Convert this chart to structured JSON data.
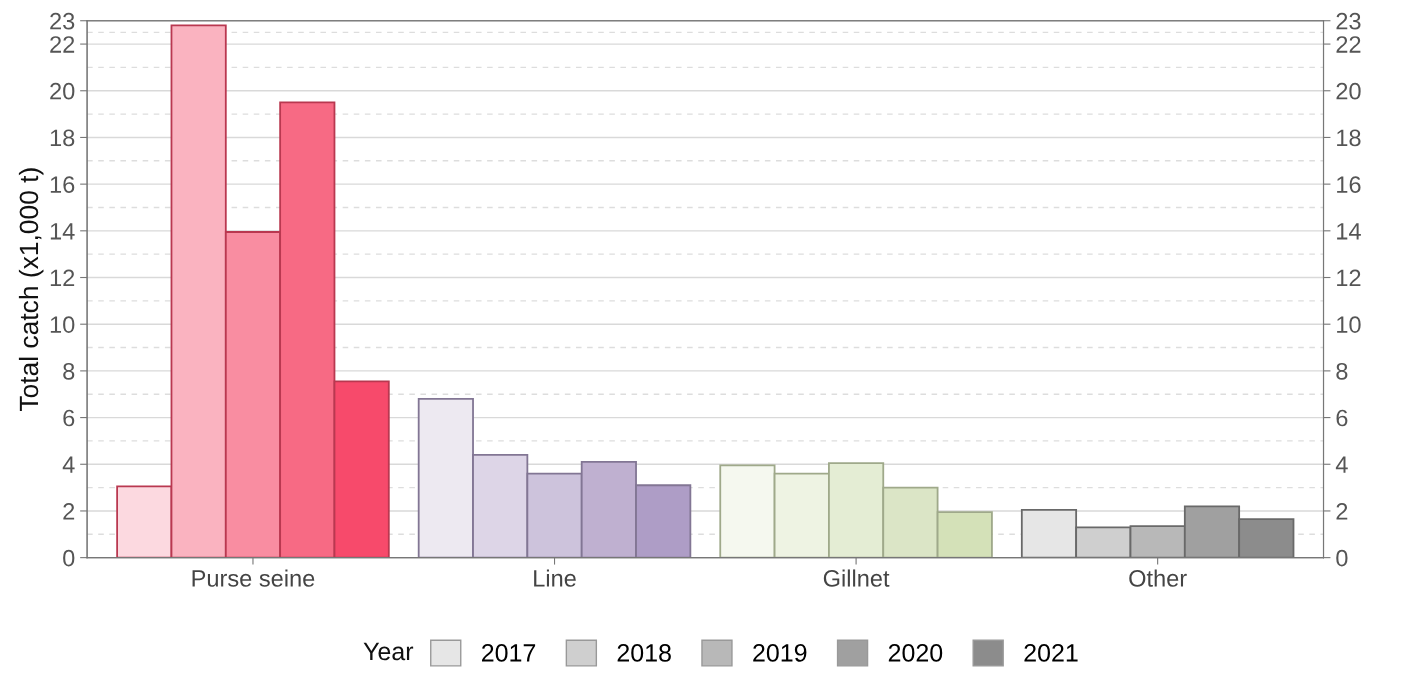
{
  "chart_data": {
    "type": "bar",
    "ylabel": "Total catch (x1,000 t)",
    "legend_title": "Year",
    "categories": [
      "Purse seine",
      "Line",
      "Gillnet",
      "Other"
    ],
    "series": [
      {
        "name": "2017",
        "color": "#e6e6e6",
        "colors": [
          "#fcd9e0",
          "#ede9f1",
          "#f5f8ef",
          "#e6e6e6"
        ],
        "values": [
          3.05,
          6.8,
          3.95,
          2.05
        ]
      },
      {
        "name": "2018",
        "color": "#cfcfcf",
        "colors": [
          "#fab3c0",
          "#ddd5e7",
          "#eef3e3",
          "#cfcfcf"
        ],
        "values": [
          22.8,
          4.4,
          3.6,
          1.3
        ]
      },
      {
        "name": "2019",
        "color": "#b8b8b8",
        "colors": [
          "#f98da1",
          "#cdc3dc",
          "#e4edd4",
          "#b8b8b8"
        ],
        "values": [
          13.95,
          3.6,
          4.05,
          1.35
        ]
      },
      {
        "name": "2020",
        "color": "#a0a0a0",
        "colors": [
          "#f76a84",
          "#bfb0d0",
          "#dbe5c6",
          "#a0a0a0"
        ],
        "values": [
          19.5,
          4.1,
          3.0,
          2.2
        ]
      },
      {
        "name": "2021",
        "color": "#8c8c8c",
        "colors": [
          "#f74a6b",
          "#ae9dc6",
          "#d4e1b8",
          "#8c8c8c"
        ],
        "values": [
          7.55,
          3.1,
          1.95,
          1.65
        ]
      }
    ],
    "ylim": [
      0,
      23
    ],
    "yticks": [
      0,
      2,
      4,
      6,
      8,
      10,
      12,
      14,
      16,
      18,
      20,
      22,
      23
    ],
    "y2lim": [
      0,
      23
    ],
    "y2ticks": [
      0,
      2,
      4,
      6,
      8,
      10,
      12,
      14,
      16,
      18,
      20,
      22,
      23
    ],
    "ref_lines": [
      {
        "axis": "y",
        "value": 1,
        "color": "#dddddd",
        "line_style": "dashed"
      },
      {
        "axis": "y",
        "value": 3,
        "color": "#dddddd",
        "line_style": "dashed"
      },
      {
        "axis": "y",
        "value": 5,
        "color": "#dddddd",
        "line_style": "dashed"
      },
      {
        "axis": "y",
        "value": 7,
        "color": "#dddddd",
        "line_style": "dashed"
      },
      {
        "axis": "y",
        "value": 9,
        "color": "#dddddd",
        "line_style": "dashed"
      },
      {
        "axis": "y",
        "value": 11,
        "color": "#dddddd",
        "line_style": "dashed"
      },
      {
        "axis": "y",
        "value": 13,
        "color": "#dddddd",
        "line_style": "dashed"
      },
      {
        "axis": "y",
        "value": 15,
        "color": "#dddddd",
        "line_style": "dashed"
      },
      {
        "axis": "y",
        "value": 17,
        "color": "#dddddd",
        "line_style": "dashed"
      },
      {
        "axis": "y",
        "value": 19,
        "color": "#dddddd",
        "line_style": "dashed"
      },
      {
        "axis": "y",
        "value": 21,
        "color": "#dddddd",
        "line_style": "dashed"
      },
      {
        "axis": "y",
        "value": 22.5,
        "color": "#dddddd",
        "line_style": "dashed"
      }
    ],
    "grid": "y",
    "legend": "bottom"
  }
}
